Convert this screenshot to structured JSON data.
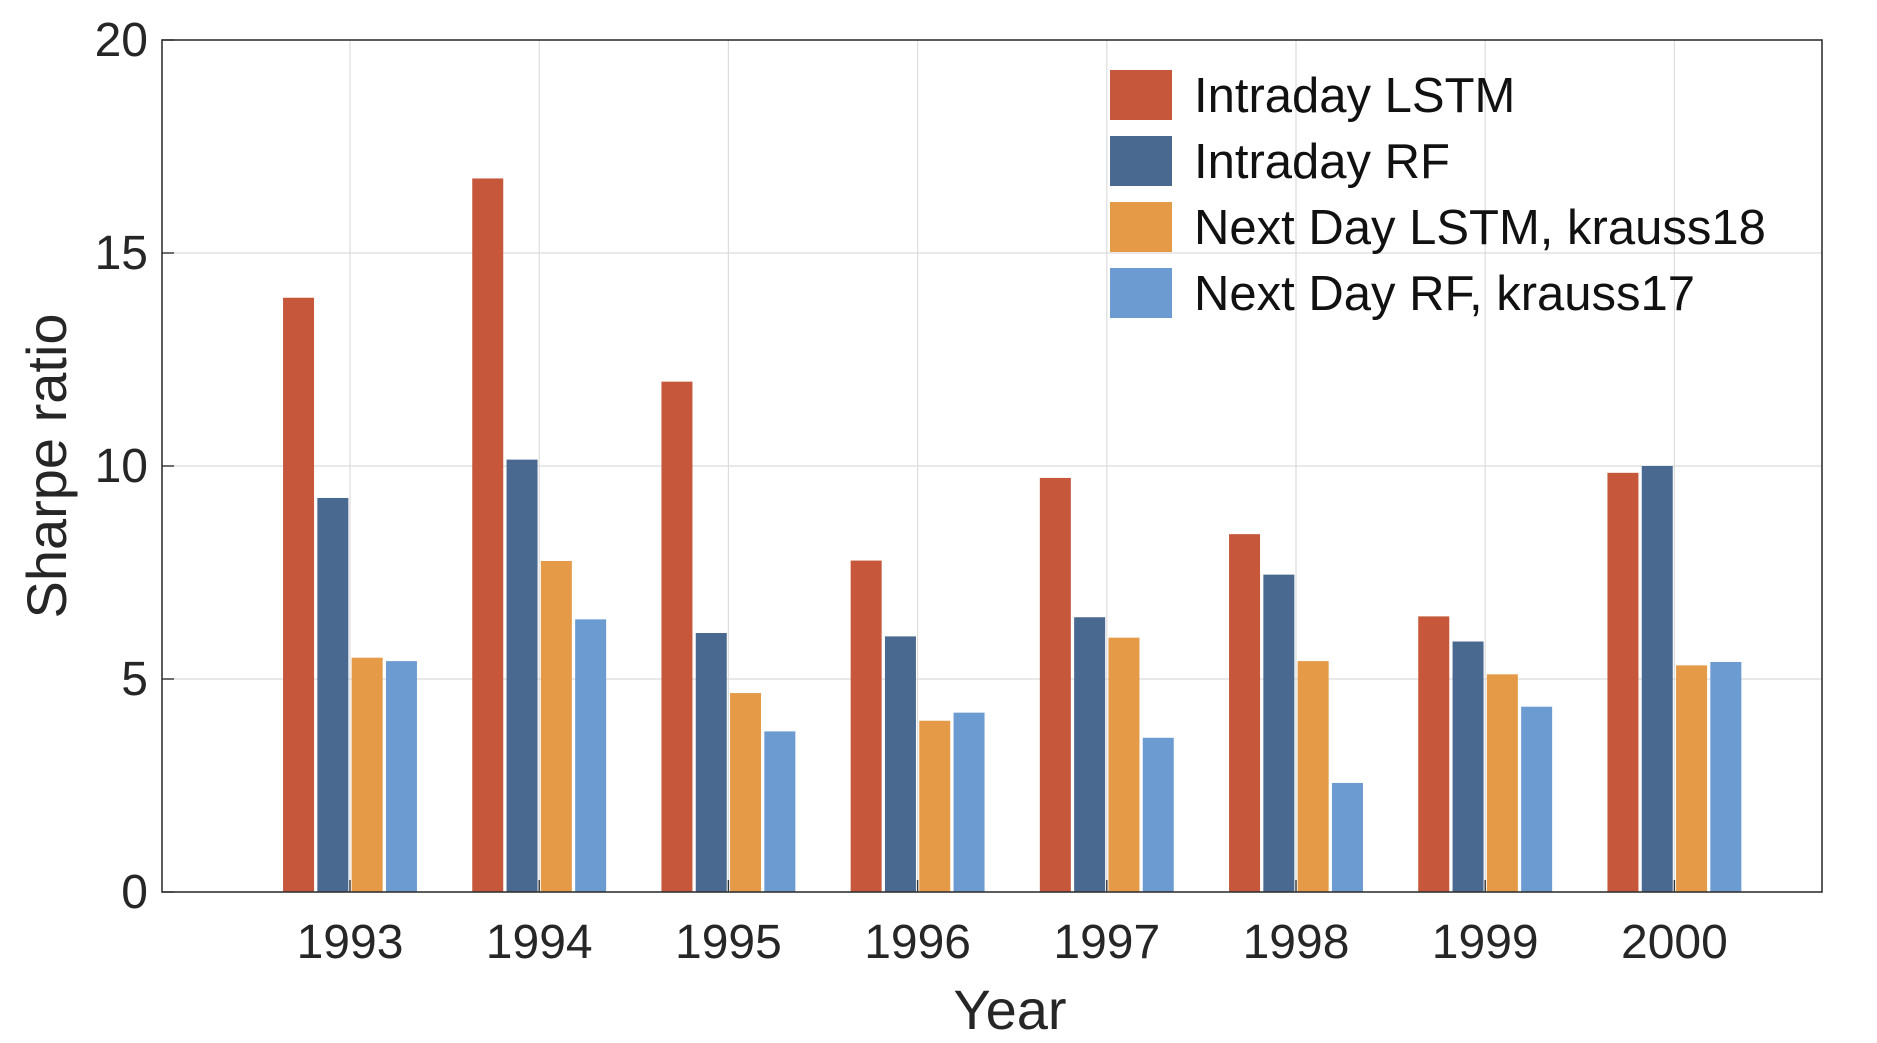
{
  "chart_data": {
    "type": "bar",
    "title": "",
    "xlabel": "Year",
    "ylabel": "Sharpe ratio",
    "categories": [
      "1993",
      "1994",
      "1995",
      "1996",
      "1997",
      "1998",
      "1999",
      "2000"
    ],
    "ylim": [
      0,
      20
    ],
    "yticks": [
      "0",
      "5",
      "10",
      "15",
      "20"
    ],
    "grid": true,
    "legend_position": "top-right",
    "series": [
      {
        "name": "Intraday LSTM",
        "color": "#c6573a",
        "values": [
          13.95,
          16.75,
          11.98,
          7.78,
          9.72,
          8.4,
          6.47,
          9.84
        ]
      },
      {
        "name": "Intraday RF",
        "color": "#4a6991",
        "values": [
          9.25,
          10.15,
          6.08,
          6.0,
          6.45,
          7.45,
          5.88,
          10.0
        ]
      },
      {
        "name": "Next Day LSTM, krauss18",
        "color": "#e59a47",
        "values": [
          5.5,
          7.77,
          4.67,
          4.02,
          5.97,
          5.42,
          5.11,
          5.32
        ]
      },
      {
        "name": "Next Day RF, krauss17",
        "color": "#6b9bd1",
        "values": [
          5.42,
          6.4,
          3.77,
          4.21,
          3.62,
          2.56,
          4.35,
          5.4
        ]
      }
    ]
  }
}
